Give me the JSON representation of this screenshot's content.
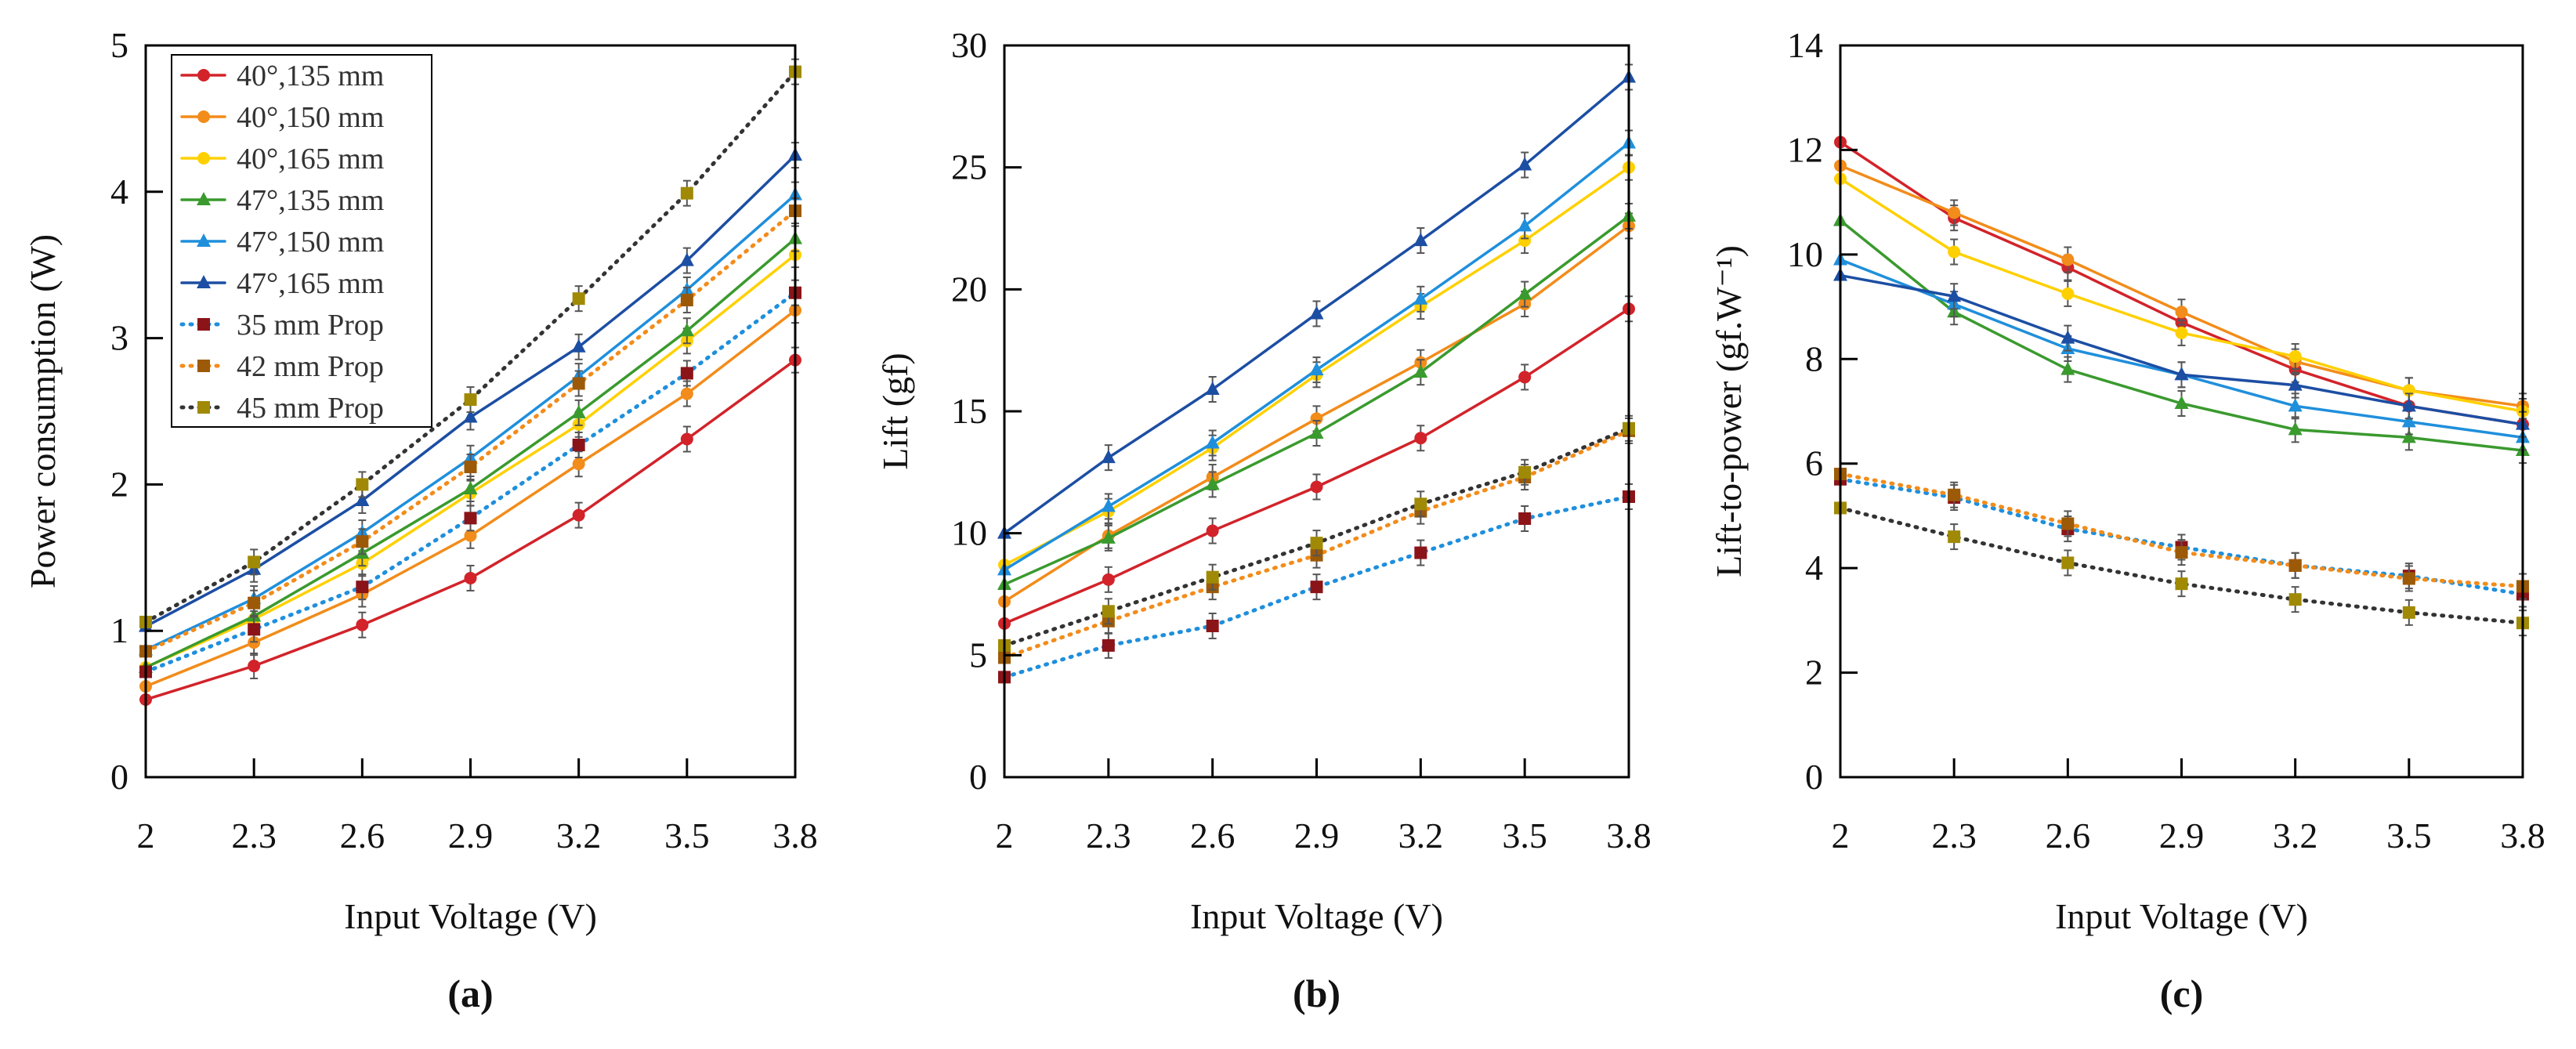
{
  "chart_data": [
    {
      "type": "line",
      "panel_label": "(a)",
      "xlabel": "Input Voltage (V)",
      "ylabel": "Power consumption (W)",
      "x": [
        2,
        2.3,
        2.6,
        2.9,
        3.2,
        3.5,
        3.8
      ],
      "x_tick_labels": [
        "2",
        "2.3",
        "2.6",
        "2.9",
        "3.2",
        "3.5",
        "3.8"
      ],
      "ylim": [
        0,
        5
      ],
      "y_ticks": [
        0,
        1,
        2,
        3,
        4,
        5
      ],
      "legend": "top-left",
      "series": [
        {
          "name": "40°,135 mm",
          "values": [
            0.53,
            0.76,
            1.04,
            1.36,
            1.79,
            2.31,
            2.85
          ]
        },
        {
          "name": "40°,150 mm",
          "values": [
            0.62,
            0.92,
            1.25,
            1.65,
            2.14,
            2.62,
            3.19
          ]
        },
        {
          "name": "40°,165 mm",
          "values": [
            0.75,
            1.08,
            1.46,
            1.94,
            2.41,
            2.98,
            3.57
          ]
        },
        {
          "name": "47°,135 mm",
          "values": [
            0.75,
            1.1,
            1.53,
            1.97,
            2.49,
            3.05,
            3.68
          ]
        },
        {
          "name": "47°,150 mm",
          "values": [
            0.87,
            1.22,
            1.67,
            2.18,
            2.74,
            3.33,
            3.98
          ]
        },
        {
          "name": "47°,165 mm",
          "values": [
            1.03,
            1.42,
            1.89,
            2.46,
            2.94,
            3.53,
            4.25
          ]
        },
        {
          "name": "35 mm Prop",
          "values": [
            0.72,
            1.01,
            1.3,
            1.77,
            2.27,
            2.76,
            3.31
          ]
        },
        {
          "name": "42 mm Prop",
          "values": [
            0.86,
            1.19,
            1.61,
            2.12,
            2.69,
            3.26,
            3.87
          ]
        },
        {
          "name": "45 mm Prop",
          "values": [
            1.06,
            1.47,
            2.0,
            2.58,
            3.27,
            3.99,
            4.82
          ]
        }
      ]
    },
    {
      "type": "line",
      "panel_label": "(b)",
      "xlabel": "Input Voltage (V)",
      "ylabel": "Lift (gf)",
      "x": [
        2,
        2.3,
        2.6,
        2.9,
        3.2,
        3.5,
        3.8
      ],
      "x_tick_labels": [
        "2",
        "2.3",
        "2.6",
        "2.9",
        "3.2",
        "3.5",
        "3.8"
      ],
      "ylim": [
        0,
        30
      ],
      "y_ticks": [
        0,
        5,
        10,
        15,
        20,
        25,
        30
      ],
      "series": [
        {
          "name": "40°,135 mm",
          "values": [
            6.3,
            8.1,
            10.1,
            11.9,
            13.9,
            16.4,
            19.2
          ]
        },
        {
          "name": "40°,150 mm",
          "values": [
            7.2,
            9.9,
            12.3,
            14.7,
            17.0,
            19.4,
            22.6
          ]
        },
        {
          "name": "40°,165 mm",
          "values": [
            8.7,
            10.9,
            13.5,
            16.5,
            19.3,
            22.0,
            25.0
          ]
        },
        {
          "name": "47°,135 mm",
          "values": [
            7.9,
            9.8,
            12.0,
            14.1,
            16.6,
            19.8,
            23.0
          ]
        },
        {
          "name": "47°,150 mm",
          "values": [
            8.5,
            11.1,
            13.7,
            16.7,
            19.6,
            22.6,
            26.0
          ]
        },
        {
          "name": "47°,165 mm",
          "values": [
            10.0,
            13.1,
            15.9,
            19.0,
            22.0,
            25.1,
            28.7
          ]
        },
        {
          "name": "35 mm Prop",
          "values": [
            4.1,
            5.4,
            6.2,
            7.8,
            9.2,
            10.6,
            11.5
          ]
        },
        {
          "name": "42 mm Prop",
          "values": [
            4.9,
            6.4,
            7.8,
            9.1,
            10.9,
            12.3,
            14.2
          ]
        },
        {
          "name": "45 mm Prop",
          "values": [
            5.4,
            6.8,
            8.2,
            9.6,
            11.2,
            12.5,
            14.3
          ]
        }
      ]
    },
    {
      "type": "line",
      "panel_label": "(c)",
      "xlabel": "Input Voltage (V)",
      "ylabel": "Lift-to-power (gf.W⁻¹)",
      "x": [
        2,
        2.3,
        2.6,
        2.9,
        3.2,
        3.5,
        3.8
      ],
      "x_tick_labels": [
        "2",
        "2.3",
        "2.6",
        "2.9",
        "3.2",
        "3.5",
        "3.8"
      ],
      "ylim": [
        0,
        14
      ],
      "y_ticks": [
        0,
        2,
        4,
        6,
        8,
        10,
        12,
        14
      ],
      "series": [
        {
          "name": "40°,135 mm",
          "values": [
            12.15,
            10.7,
            9.75,
            8.7,
            7.8,
            7.1,
            6.75
          ]
        },
        {
          "name": "40°,150 mm",
          "values": [
            11.7,
            10.8,
            9.9,
            8.9,
            7.95,
            7.4,
            7.1
          ]
        },
        {
          "name": "40°,165 mm",
          "values": [
            11.45,
            10.05,
            9.25,
            8.5,
            8.05,
            7.4,
            7.0
          ]
        },
        {
          "name": "47°,135 mm",
          "values": [
            10.65,
            8.9,
            7.8,
            7.15,
            6.65,
            6.5,
            6.25
          ]
        },
        {
          "name": "47°,150 mm",
          "values": [
            9.9,
            9.05,
            8.2,
            7.7,
            7.1,
            6.8,
            6.5
          ]
        },
        {
          "name": "47°,165 mm",
          "values": [
            9.6,
            9.2,
            8.4,
            7.7,
            7.5,
            7.1,
            6.75
          ]
        },
        {
          "name": "35 mm Prop",
          "values": [
            5.7,
            5.35,
            4.75,
            4.4,
            4.05,
            3.85,
            3.5
          ]
        },
        {
          "name": "42 mm Prop",
          "values": [
            5.8,
            5.4,
            4.85,
            4.3,
            4.05,
            3.8,
            3.65
          ]
        },
        {
          "name": "45 mm Prop",
          "values": [
            5.15,
            4.6,
            4.1,
            3.7,
            3.4,
            3.15,
            2.95
          ]
        }
      ]
    }
  ],
  "series_styles": [
    {
      "line": "#d2232a",
      "marker": "#d2232a",
      "shape": "circle",
      "dash": false
    },
    {
      "line": "#f28c1a",
      "marker": "#f28c1a",
      "shape": "circle",
      "dash": false
    },
    {
      "line": "#ffd000",
      "marker": "#ffd000",
      "shape": "circle",
      "dash": false
    },
    {
      "line": "#3a9a2e",
      "marker": "#3a9a2e",
      "shape": "triangle",
      "dash": false
    },
    {
      "line": "#1f8fdc",
      "marker": "#1f8fdc",
      "shape": "triangle",
      "dash": false
    },
    {
      "line": "#1c4ea3",
      "marker": "#1c4ea3",
      "shape": "triangle",
      "dash": false
    },
    {
      "line": "#1f8fdc",
      "marker": "#8b1418",
      "shape": "square",
      "dash": true
    },
    {
      "line": "#f28c1a",
      "marker": "#9c5a08",
      "shape": "square",
      "dash": true
    },
    {
      "line": "#333333",
      "marker": "#a08a05",
      "shape": "square",
      "dash": true
    }
  ]
}
